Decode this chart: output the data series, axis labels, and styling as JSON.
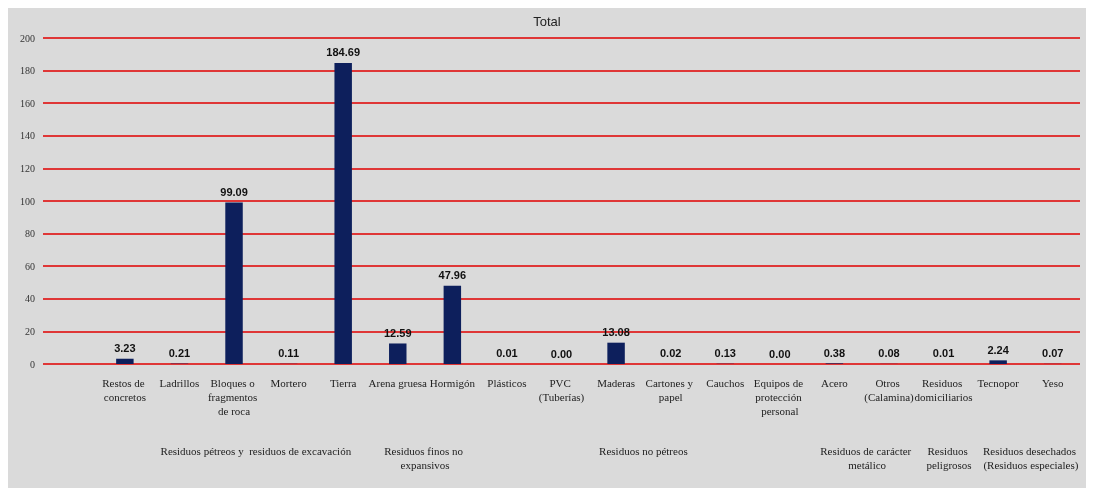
{
  "chart_data": {
    "type": "bar",
    "title": "Total",
    "categories": [
      null,
      "Restos de concretos",
      "Ladrillos",
      "Bloques o fragmentos de roca",
      "Mortero",
      "Tierra",
      "Arena gruesa",
      "Hormigón",
      "Plásticos",
      "PVC (Tuberías)",
      "Maderas",
      "Cartones y papel",
      "Cauchos",
      "Equipos de protección personal",
      "Acero",
      "Otros (Calamina)",
      "Residuos domiciliarios",
      "Tecnopor",
      "Yeso"
    ],
    "values": [
      null,
      3.23,
      0.21,
      99.09,
      0.11,
      184.69,
      12.59,
      47.96,
      0.01,
      0,
      13.08,
      0.02,
      0.13,
      0,
      0.38,
      0.08,
      0.01,
      2.24,
      0.07
    ],
    "value_labels": [
      null,
      "3.23",
      "0.21",
      "99.09",
      "0.11",
      "184.69",
      "12.59",
      "47.96",
      "0.01",
      "0.00",
      "13.08",
      "0.02",
      "0.13",
      "0.00",
      "0.38",
      "0.08",
      "0.01",
      "2.24",
      "0.07"
    ],
    "color": "#0d1f5c",
    "ylim": [
      0,
      200
    ],
    "yticks": [
      0,
      20,
      40,
      60,
      80,
      100,
      120,
      140,
      160,
      180,
      200
    ],
    "grid": "y",
    "annotations": [
      "Residuos pétreos y  residuos de excavación",
      "Residuos finos no expansivos",
      "Residuos no pétreos",
      "Residuos de carácter metálico",
      "Residuos peligrosos",
      "Residuos desechados (Residuos especiales)"
    ]
  }
}
